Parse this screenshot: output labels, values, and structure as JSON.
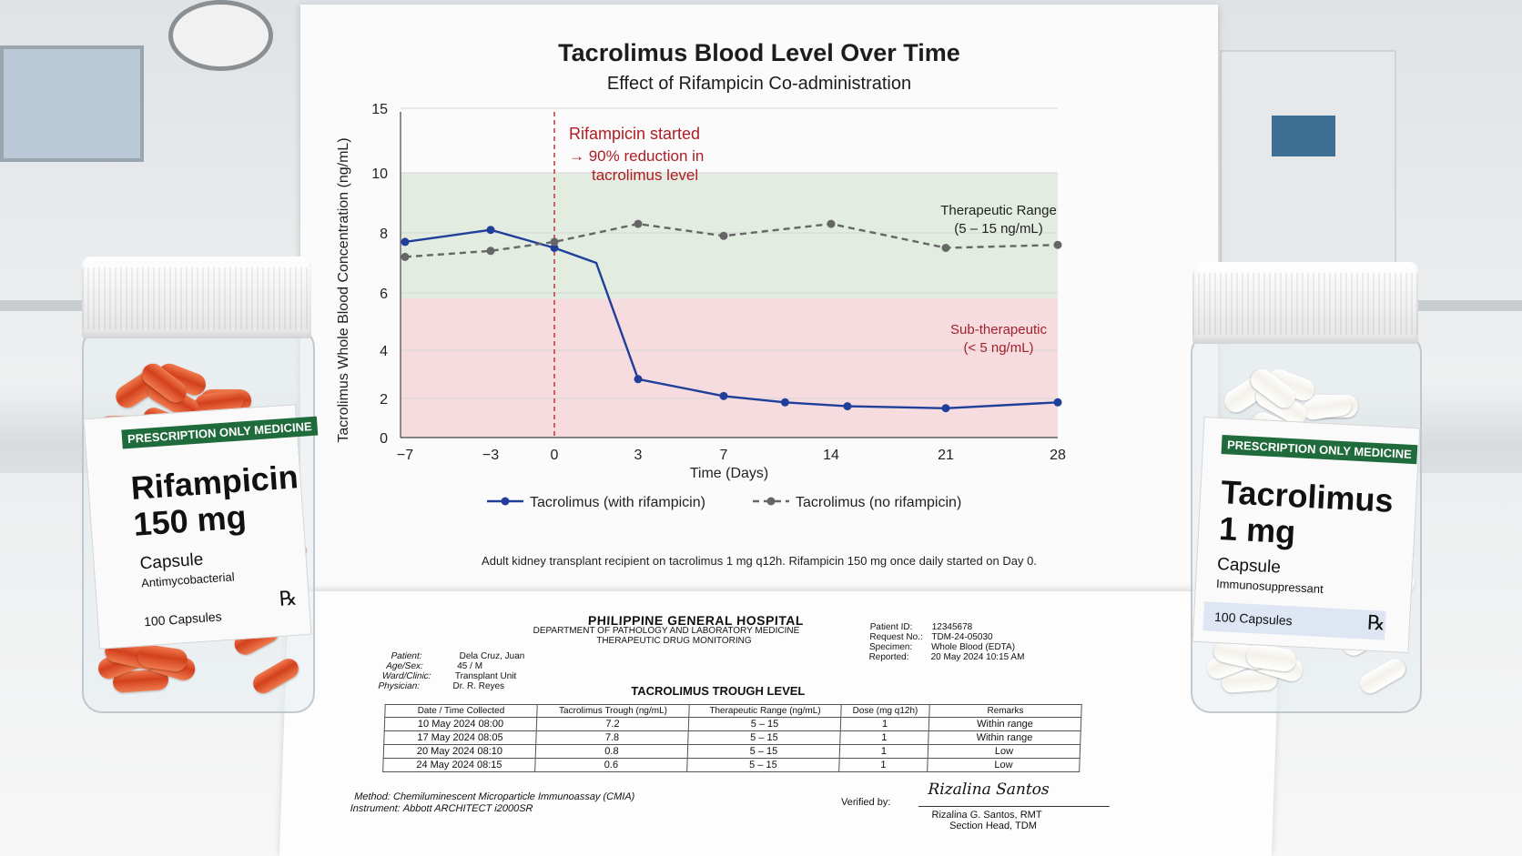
{
  "chart_data": {
    "type": "line",
    "title": "Tacrolimus Blood Level Over Time",
    "subtitle": "Effect of Rifampicin Co-administration",
    "xlabel": "Time (Days)",
    "ylabel": "Tacrolimus Whole Blood Concentration (ng/mL)",
    "x_ticks": [
      -7,
      -3,
      0,
      3,
      7,
      14,
      21,
      28
    ],
    "y_ticks": [
      0,
      2,
      4,
      6,
      8,
      10,
      15
    ],
    "grid": true,
    "legend_position": "bottom",
    "series": [
      {
        "name": "Tacrolimus (with rifampicin)",
        "color": "#1f3f9a",
        "style": "solid",
        "points": [
          [
            -7,
            7.7
          ],
          [
            -3,
            8.1
          ],
          [
            0,
            7.5
          ],
          [
            1.5,
            7.0
          ],
          [
            3,
            2.8
          ],
          [
            7,
            2.1
          ],
          [
            11,
            1.8
          ],
          [
            15,
            1.6
          ],
          [
            21,
            1.5
          ],
          [
            28,
            1.8
          ]
        ],
        "markers_at": [
          -7,
          -3,
          0,
          3,
          7,
          11,
          15,
          21,
          28
        ]
      },
      {
        "name": "Tacrolimus (no rifampicin)",
        "color": "#666666",
        "style": "dashed",
        "points": [
          [
            -7,
            7.2
          ],
          [
            -3,
            7.4
          ],
          [
            0,
            7.7
          ],
          [
            1.5,
            8.0
          ],
          [
            3,
            8.3
          ],
          [
            7,
            7.9
          ],
          [
            14,
            8.3
          ],
          [
            21,
            7.5
          ],
          [
            28,
            7.6
          ]
        ]
      }
    ],
    "bands": [
      {
        "label_line1": "Therapeutic Range",
        "label_line2": "(5 – 15 ng/mL)",
        "color": "#e3ece0"
      },
      {
        "label_line1": "Sub-therapeutic",
        "label_line2": "(< 5 ng/mL)",
        "color": "#f6dcdf",
        "text_color": "#a31f2a"
      }
    ],
    "event": {
      "x": 0,
      "line1": "Rifampicin started",
      "line2": "→ 90% reduction in",
      "line3": "tacrolimus level",
      "color": "#b01c24"
    },
    "footnote": "Adult kidney transplant recipient on tacrolimus 1 mg q12h. Rifampicin 150 mg once daily started on Day 0."
  },
  "report": {
    "hospital": "PHILIPPINE GENERAL HOSPITAL",
    "department": "DEPARTMENT OF PATHOLOGY AND LABORATORY MEDICINE",
    "unit": "THERAPEUTIC DRUG MONITORING",
    "patient_fields": [
      {
        "k": "Patient:",
        "v": "Dela Cruz, Juan"
      },
      {
        "k": "Age/Sex:",
        "v": "45 / M"
      },
      {
        "k": "Ward/Clinic:",
        "v": "Transplant Unit"
      },
      {
        "k": "Physician:",
        "v": "Dr. R. Reyes"
      }
    ],
    "request_fields": [
      {
        "k": "Patient ID:",
        "v": "12345678"
      },
      {
        "k": "Request No.:",
        "v": "TDM-24-05030"
      },
      {
        "k": "Specimen:",
        "v": "Whole Blood (EDTA)"
      },
      {
        "k": "Reported:",
        "v": "20 May 2024 10:15 AM"
      }
    ],
    "section_title": "TACROLIMUS TROUGH LEVEL",
    "columns": [
      "Date / Time Collected",
      "Tacrolimus Trough (ng/mL)",
      "Therapeutic Range (ng/mL)",
      "Dose (mg q12h)",
      "Remarks"
    ],
    "rows": [
      [
        "10 May 2024 08:00",
        "7.2",
        "5 – 15",
        "1",
        "Within range"
      ],
      [
        "17 May 2024 08:05",
        "7.8",
        "5 – 15",
        "1",
        "Within range"
      ],
      [
        "20 May 2024 08:10",
        "0.8",
        "5 – 15",
        "1",
        "Low"
      ],
      [
        "24 May 2024 08:15",
        "0.6",
        "5 – 15",
        "1",
        "Low"
      ]
    ],
    "method_label": "Method:",
    "method": "Chemiluminescent Microparticle Immunoassay (CMIA)",
    "instrument_label": "Instrument:",
    "instrument": "Abbott ARCHITECT i2000SR",
    "verified_label": "Verified by:",
    "signature": "Rizalina Santos",
    "verifier_name": "Rizalina G. Santos, RMT",
    "verifier_title": "Section Head, TDM"
  },
  "bottle_left": {
    "badge": "PRESCRIPTION ONLY MEDICINE",
    "drug_line1": "Rifampicin",
    "drug_line2": "150 mg",
    "form": "Capsule",
    "drug_class": "Antimycobacterial",
    "quantity": "100 Capsules",
    "rx": "℞",
    "capsule_color": "#d2401c"
  },
  "bottle_right": {
    "badge": "PRESCRIPTION ONLY MEDICINE",
    "drug_line1": "Tacrolimus",
    "drug_line2": "1 mg",
    "form": "Capsule",
    "drug_class": "Immunosuppressant",
    "quantity": "100 Capsules",
    "rx": "℞",
    "capsule_color": "#f3f1ea"
  }
}
